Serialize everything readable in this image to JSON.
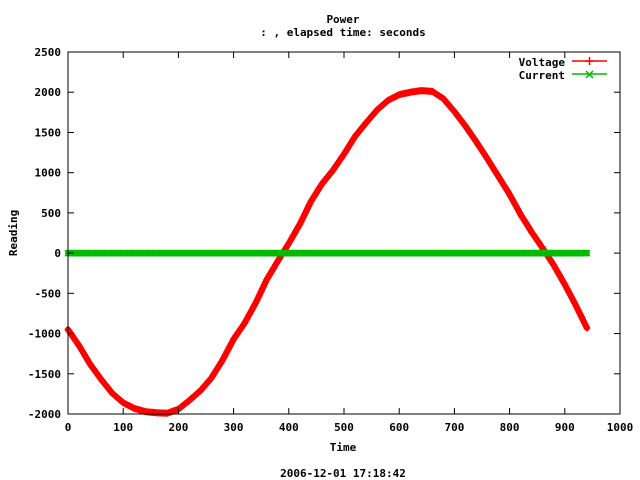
{
  "chart_data": {
    "type": "scatter",
    "title": "Power",
    "subtitle": ": , elapsed time:  seconds",
    "xlabel": "Time",
    "ylabel": "Reading",
    "footer": "2006-12-01 17:18:42",
    "xlim": [
      0,
      1000
    ],
    "ylim": [
      -2000,
      2500
    ],
    "x_ticks": [
      0,
      100,
      200,
      300,
      400,
      500,
      600,
      700,
      800,
      900,
      1000
    ],
    "y_ticks": [
      -2000,
      -1500,
      -1000,
      -500,
      0,
      500,
      1000,
      1500,
      2000,
      2500
    ],
    "legend_position": "top-right",
    "grid": false,
    "series": [
      {
        "name": "Voltage",
        "color": "#ff0000",
        "marker": "plus",
        "x_range": [
          0,
          940
        ],
        "points": [
          [
            0,
            -950
          ],
          [
            20,
            -1150
          ],
          [
            40,
            -1380
          ],
          [
            60,
            -1570
          ],
          [
            80,
            -1740
          ],
          [
            100,
            -1860
          ],
          [
            120,
            -1930
          ],
          [
            140,
            -1970
          ],
          [
            160,
            -1985
          ],
          [
            180,
            -1990
          ],
          [
            200,
            -1940
          ],
          [
            220,
            -1830
          ],
          [
            240,
            -1710
          ],
          [
            260,
            -1550
          ],
          [
            280,
            -1330
          ],
          [
            300,
            -1070
          ],
          [
            320,
            -870
          ],
          [
            340,
            -620
          ],
          [
            360,
            -330
          ],
          [
            380,
            -100
          ],
          [
            400,
            120
          ],
          [
            420,
            360
          ],
          [
            440,
            640
          ],
          [
            460,
            860
          ],
          [
            480,
            1030
          ],
          [
            500,
            1230
          ],
          [
            520,
            1450
          ],
          [
            540,
            1620
          ],
          [
            560,
            1780
          ],
          [
            580,
            1900
          ],
          [
            600,
            1970
          ],
          [
            620,
            2000
          ],
          [
            640,
            2020
          ],
          [
            660,
            2010
          ],
          [
            680,
            1920
          ],
          [
            700,
            1760
          ],
          [
            720,
            1580
          ],
          [
            740,
            1380
          ],
          [
            760,
            1170
          ],
          [
            780,
            950
          ],
          [
            800,
            730
          ],
          [
            820,
            480
          ],
          [
            840,
            260
          ],
          [
            860,
            60
          ],
          [
            880,
            -150
          ],
          [
            900,
            -390
          ],
          [
            920,
            -650
          ],
          [
            940,
            -930
          ]
        ]
      },
      {
        "name": "Current",
        "color": "#00bb00",
        "marker": "cross",
        "x_range": [
          0,
          940
        ],
        "points": [
          [
            0,
            0
          ],
          [
            940,
            0
          ]
        ]
      }
    ]
  }
}
